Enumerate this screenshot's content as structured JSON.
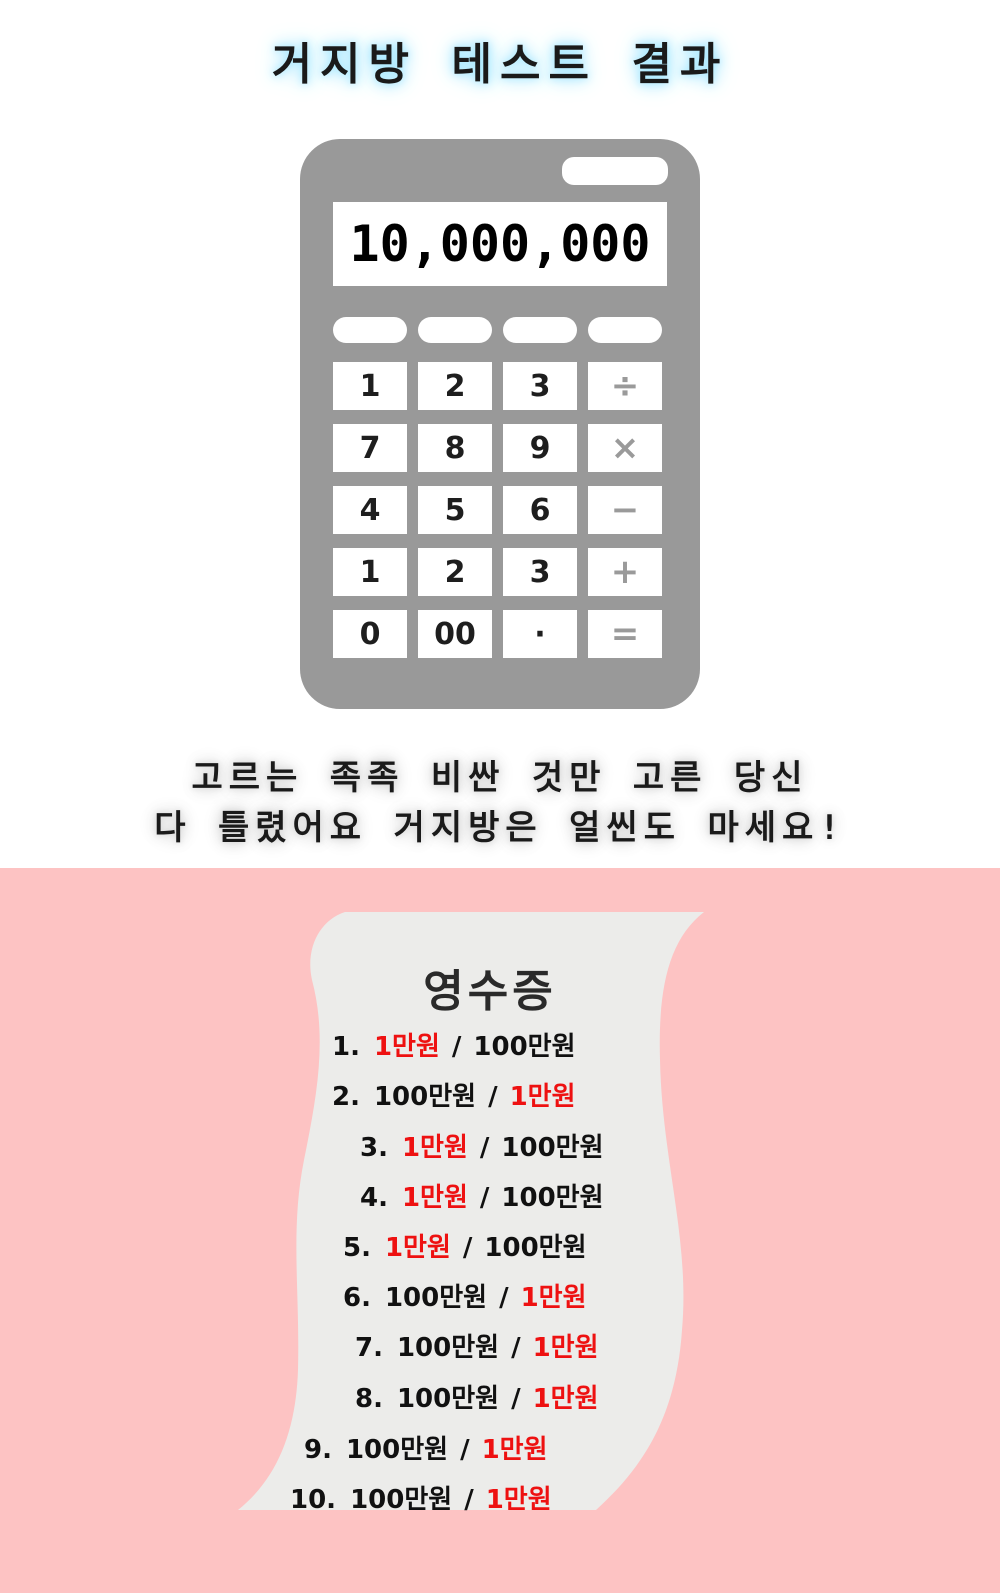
{
  "title": "거지방 테스트 결과",
  "calculator": {
    "display": "10,000,000",
    "keys": [
      [
        "1",
        "2",
        "3",
        "÷"
      ],
      [
        "7",
        "8",
        "9",
        "×"
      ],
      [
        "4",
        "5",
        "6",
        "−"
      ],
      [
        "1",
        "2",
        "3",
        "+"
      ],
      [
        "0",
        "00",
        "·",
        "="
      ]
    ]
  },
  "message": {
    "line1": "고르는 족족 비싼 것만 고른 당신",
    "line2": "다 틀렸어요 거지방은 얼씬도 마세요!"
  },
  "receipt": {
    "title": "영수증",
    "separator": "/",
    "rows": [
      {
        "num": "1.",
        "a": "1만원",
        "b": "100만원",
        "picked": "a"
      },
      {
        "num": "2.",
        "a": "100만원",
        "b": "1만원",
        "picked": "b"
      },
      {
        "num": "3.",
        "a": "1만원",
        "b": "100만원",
        "picked": "a"
      },
      {
        "num": "4.",
        "a": "1만원",
        "b": "100만원",
        "picked": "a"
      },
      {
        "num": "5.",
        "a": "1만원",
        "b": "100만원",
        "picked": "a"
      },
      {
        "num": "6.",
        "a": "100만원",
        "b": "1만원",
        "picked": "b"
      },
      {
        "num": "7.",
        "a": "100만원",
        "b": "1만원",
        "picked": "b"
      },
      {
        "num": "8.",
        "a": "100만원",
        "b": "1만원",
        "picked": "b"
      },
      {
        "num": "9.",
        "a": "100만원",
        "b": "1만원",
        "picked": "b"
      },
      {
        "num": "10.",
        "a": "100만원",
        "b": "1만원",
        "picked": "b"
      }
    ]
  },
  "colors": {
    "pick": "#ee1111",
    "calculator_body": "#999999",
    "pink_background": "#fdc3c3",
    "receipt_paper": "#ececea"
  }
}
